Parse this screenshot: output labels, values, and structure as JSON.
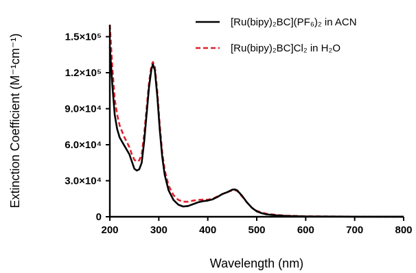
{
  "chart_data": {
    "type": "line",
    "title": "",
    "xlabel": "Wavelength (nm)",
    "ylabel": "Extinction Coefficient (M⁻¹cm⁻¹)",
    "xlim": [
      200,
      800
    ],
    "ylim": [
      0,
      160000
    ],
    "x_ticks": [
      200,
      300,
      400,
      500,
      600,
      700,
      800
    ],
    "x_tick_labels": [
      "200",
      "300",
      "400",
      "500",
      "600",
      "700",
      "800"
    ],
    "y_ticks": [
      0,
      30000,
      60000,
      90000,
      120000,
      150000
    ],
    "y_tick_labels": [
      "0",
      "3.0×10⁴",
      "6.0×10⁴",
      "9.0×10⁴",
      "1.2×10⁵",
      "1.5×10⁵"
    ],
    "grid": false,
    "legend_position": "top-right",
    "series": [
      {
        "name": "[Ru(bipy)₂BC](PF₆)₂ in ACN",
        "color": "#000000",
        "style": "solid",
        "points": [
          [
            200,
            142000
          ],
          [
            205,
            110000
          ],
          [
            210,
            85000
          ],
          [
            215,
            73000
          ],
          [
            220,
            66000
          ],
          [
            230,
            59000
          ],
          [
            240,
            52000
          ],
          [
            245,
            46000
          ],
          [
            250,
            40000
          ],
          [
            255,
            38500
          ],
          [
            260,
            39500
          ],
          [
            265,
            45000
          ],
          [
            270,
            62000
          ],
          [
            275,
            85000
          ],
          [
            280,
            108000
          ],
          [
            285,
            123000
          ],
          [
            288,
            127000
          ],
          [
            292,
            122000
          ],
          [
            297,
            100000
          ],
          [
            302,
            72000
          ],
          [
            307,
            50000
          ],
          [
            312,
            35000
          ],
          [
            320,
            22000
          ],
          [
            330,
            14000
          ],
          [
            340,
            10000
          ],
          [
            350,
            8500
          ],
          [
            360,
            9000
          ],
          [
            370,
            10500
          ],
          [
            380,
            12000
          ],
          [
            390,
            13000
          ],
          [
            400,
            13500
          ],
          [
            410,
            14500
          ],
          [
            420,
            16500
          ],
          [
            430,
            19000
          ],
          [
            440,
            20500
          ],
          [
            450,
            22500
          ],
          [
            455,
            22800
          ],
          [
            460,
            22000
          ],
          [
            470,
            17500
          ],
          [
            480,
            12000
          ],
          [
            490,
            7500
          ],
          [
            500,
            4500
          ],
          [
            510,
            3000
          ],
          [
            520,
            2000
          ],
          [
            540,
            1200
          ],
          [
            560,
            700
          ],
          [
            600,
            300
          ],
          [
            650,
            150
          ],
          [
            700,
            80
          ],
          [
            750,
            50
          ],
          [
            800,
            30
          ]
        ]
      },
      {
        "name": "[Ru(bipy)₂BC]Cl₂ in H₂O",
        "color": "#e0202a",
        "style": "dashed",
        "points": [
          [
            200,
            160000
          ],
          [
            205,
            125000
          ],
          [
            210,
            98000
          ],
          [
            215,
            85000
          ],
          [
            220,
            76000
          ],
          [
            230,
            66000
          ],
          [
            240,
            58000
          ],
          [
            245,
            52000
          ],
          [
            250,
            47500
          ],
          [
            255,
            46000
          ],
          [
            260,
            47000
          ],
          [
            265,
            52000
          ],
          [
            270,
            68000
          ],
          [
            275,
            90000
          ],
          [
            280,
            112000
          ],
          [
            285,
            126000
          ],
          [
            288,
            129000
          ],
          [
            292,
            125000
          ],
          [
            297,
            104000
          ],
          [
            302,
            76000
          ],
          [
            307,
            54000
          ],
          [
            312,
            39000
          ],
          [
            320,
            26000
          ],
          [
            330,
            18000
          ],
          [
            340,
            14000
          ],
          [
            350,
            12500
          ],
          [
            360,
            12500
          ],
          [
            370,
            13500
          ],
          [
            380,
            14000
          ],
          [
            390,
            14200
          ],
          [
            400,
            14200
          ],
          [
            410,
            15000
          ],
          [
            420,
            17000
          ],
          [
            430,
            19000
          ],
          [
            440,
            20500
          ],
          [
            450,
            22000
          ],
          [
            455,
            22200
          ],
          [
            460,
            21500
          ],
          [
            470,
            17000
          ],
          [
            480,
            12000
          ],
          [
            490,
            7500
          ],
          [
            500,
            5000
          ],
          [
            510,
            3500
          ],
          [
            520,
            2500
          ],
          [
            540,
            1500
          ],
          [
            560,
            900
          ],
          [
            600,
            400
          ],
          [
            650,
            200
          ],
          [
            700,
            100
          ],
          [
            750,
            60
          ],
          [
            800,
            40
          ]
        ]
      }
    ]
  }
}
